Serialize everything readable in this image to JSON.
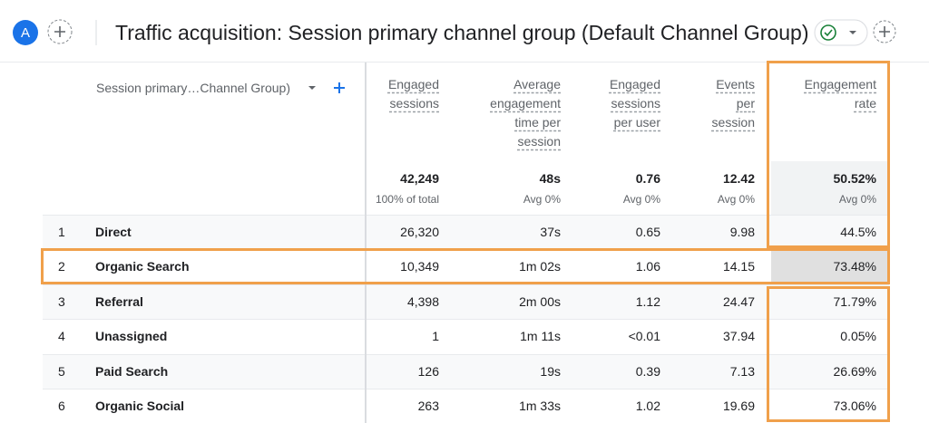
{
  "header": {
    "avatar": "A",
    "title": "Traffic acquisition: Session primary channel group (Default Channel Group)"
  },
  "table": {
    "dimension_header": "Session primary…Channel Group)",
    "columns": [
      "Engaged sessions",
      "Average engagement time per session",
      "Engaged sessions per user",
      "Events per session",
      "Engagement rate"
    ],
    "totals": [
      "42,249",
      "48s",
      "0.76",
      "12.42",
      "50.52%"
    ],
    "totals_notes": [
      "100% of total",
      "Avg 0%",
      "Avg 0%",
      "Avg 0%",
      "Avg 0%"
    ],
    "rows": [
      [
        "1",
        "Direct",
        "26,320",
        "37s",
        "0.65",
        "9.98",
        "44.5%"
      ],
      [
        "2",
        "Organic Search",
        "10,349",
        "1m 02s",
        "1.06",
        "14.15",
        "73.48%"
      ],
      [
        "3",
        "Referral",
        "4,398",
        "2m 00s",
        "1.12",
        "24.47",
        "71.79%"
      ],
      [
        "4",
        "Unassigned",
        "1",
        "1m 11s",
        "<0.01",
        "37.94",
        "0.05%"
      ],
      [
        "5",
        "Paid Search",
        "126",
        "19s",
        "0.39",
        "7.13",
        "26.69%"
      ],
      [
        "6",
        "Organic Social",
        "263",
        "1m 33s",
        "1.02",
        "19.69",
        "73.06%"
      ]
    ]
  }
}
